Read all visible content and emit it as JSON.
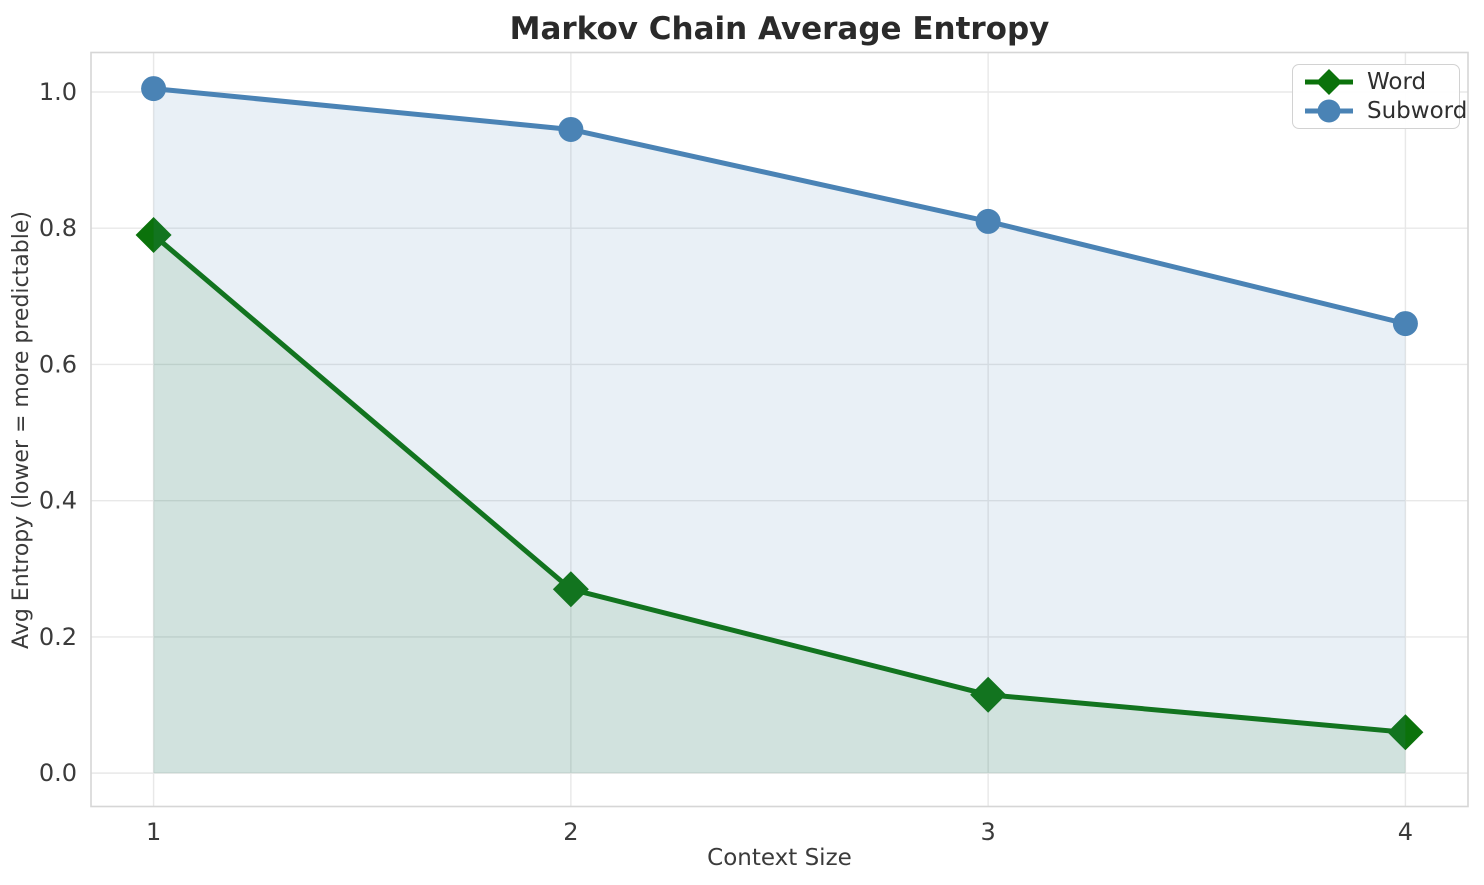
{
  "title": "Markov Chain Average Entropy",
  "chart_data": {
    "type": "line",
    "title": "Markov Chain Average Entropy",
    "xlabel": "Context Size",
    "ylabel": "Avg Entropy (lower = more predictable)",
    "x": [
      1,
      2,
      3,
      4
    ],
    "series": [
      {
        "name": "Word",
        "values": [
          0.79,
          0.27,
          0.115,
          0.06
        ],
        "color": "#0b720b",
        "fill_color": "rgba(13,114,13,0.11)",
        "marker": "diamond",
        "line_width": 5
      },
      {
        "name": "Subword",
        "values": [
          1.005,
          0.945,
          0.81,
          0.66
        ],
        "color": "#4a83b5",
        "fill_color": "rgba(74,131,181,0.12)",
        "marker": "circle",
        "line_width": 5
      }
    ],
    "fill_to_y": 0,
    "xticks": [
      "1",
      "2",
      "3",
      "4"
    ],
    "xtick_values": [
      1,
      2,
      3,
      4
    ],
    "yticks": [
      "0.0",
      "0.2",
      "0.4",
      "0.6",
      "0.8",
      "1.0"
    ],
    "ytick_values": [
      0.0,
      0.2,
      0.4,
      0.6,
      0.8,
      1.0
    ],
    "xlim": [
      0.85,
      4.15
    ],
    "ylim": [
      -0.049,
      1.058
    ],
    "grid": true,
    "legend_position": "upper right"
  },
  "legend": {
    "items": [
      {
        "label": "Word"
      },
      {
        "label": "Subword"
      }
    ]
  },
  "colors": {
    "background": "#ffffff",
    "grid": "#e8e8e8",
    "spine": "#d6d6d6",
    "title_text": "#2a2a2a",
    "axis_text": "#3b3b3b",
    "legend_text": "#2f2f2f"
  }
}
